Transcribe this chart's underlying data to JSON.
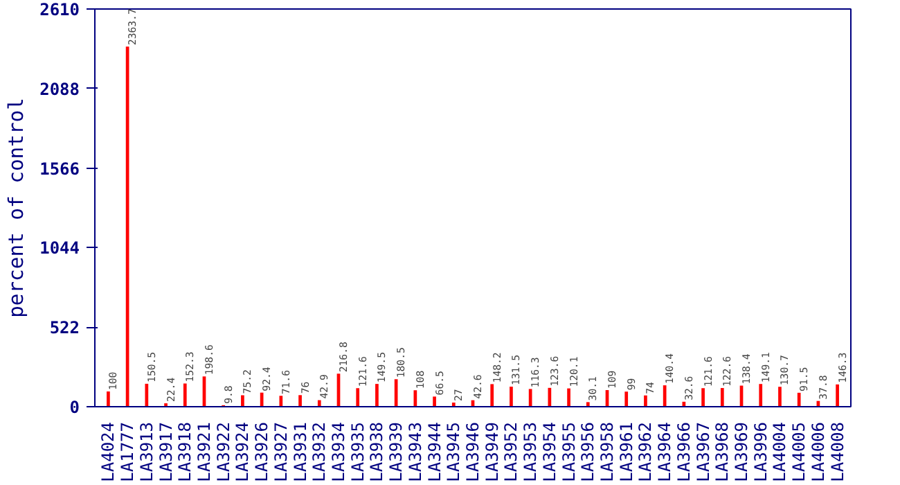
{
  "chart_data": {
    "type": "bar",
    "ylabel": "percent of control",
    "categories": [
      "LA4024",
      "LA1777",
      "LA3913",
      "LA3917",
      "LA3918",
      "LA3921",
      "LA3922",
      "LA3924",
      "LA3926",
      "LA3927",
      "LA3931",
      "LA3932",
      "LA3934",
      "LA3935",
      "LA3938",
      "LA3939",
      "LA3943",
      "LA3944",
      "LA3945",
      "LA3946",
      "LA3949",
      "LA3952",
      "LA3953",
      "LA3954",
      "LA3955",
      "LA3956",
      "LA3958",
      "LA3961",
      "LA3962",
      "LA3964",
      "LA3966",
      "LA3967",
      "LA3968",
      "LA3969",
      "LA3996",
      "LA4004",
      "LA4005",
      "LA4006",
      "LA4008"
    ],
    "values": [
      100,
      2363.7,
      150.5,
      22.4,
      152.3,
      198.6,
      9.8,
      75.2,
      92.4,
      71.6,
      76,
      42.9,
      216.8,
      121.6,
      149.5,
      180.5,
      108,
      66.5,
      27,
      42.6,
      148.2,
      131.5,
      116.3,
      123.6,
      120.1,
      30.1,
      109,
      99,
      74,
      140.4,
      32.6,
      121.6,
      122.6,
      138.4,
      149.1,
      130.7,
      91.5,
      37.8,
      146.3
    ],
    "color": "#ff0000",
    "data_labels": true,
    "ylim": [
      0,
      2610
    ],
    "yticks": [
      0,
      522,
      1044,
      1566,
      2088,
      2610
    ],
    "grid": false
  }
}
